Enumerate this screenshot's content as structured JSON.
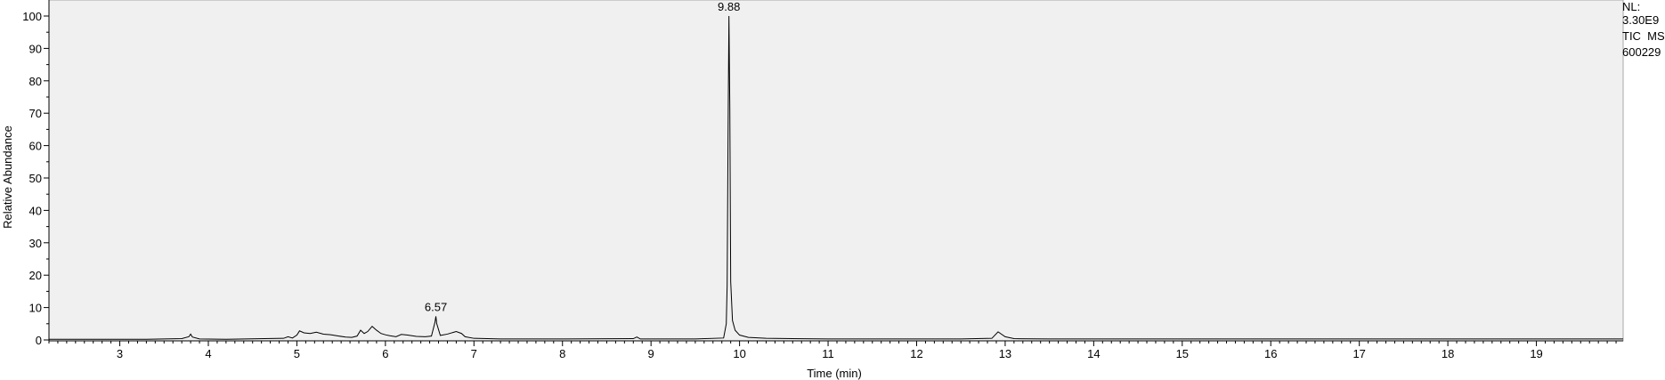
{
  "chart_data": {
    "type": "line",
    "title": "",
    "xlabel": "Time (min)",
    "ylabel": "Relative Abundance",
    "xlim": [
      2.2,
      19.98
    ],
    "ylim": [
      0,
      100
    ],
    "x_ticks": [
      3,
      4,
      5,
      6,
      7,
      8,
      9,
      10,
      11,
      12,
      13,
      14,
      15,
      16,
      17,
      18,
      19
    ],
    "y_ticks": [
      0,
      10,
      20,
      30,
      40,
      50,
      60,
      70,
      80,
      90,
      100
    ],
    "grid": false,
    "background": "#f0f0f0",
    "line_color": "#000000",
    "series": [
      {
        "x": [
          2.2,
          3.3,
          3.5,
          3.7,
          3.78,
          3.8,
          3.82,
          3.9,
          4.2,
          4.85,
          4.9,
          4.95,
          5.0,
          5.03,
          5.08,
          5.15,
          5.22,
          5.3,
          5.38,
          5.45,
          5.55,
          5.62,
          5.68,
          5.72,
          5.76,
          5.8,
          5.85,
          5.9,
          5.95,
          6.0,
          6.05,
          6.12,
          6.18,
          6.25,
          6.35,
          6.45,
          6.52,
          6.56,
          6.57,
          6.58,
          6.62,
          6.7,
          6.8,
          6.86,
          6.9,
          7.0,
          7.3,
          8.0,
          8.8,
          8.84,
          8.88,
          9.5,
          9.82,
          9.85,
          9.86,
          9.87,
          9.88,
          9.89,
          9.9,
          9.92,
          9.95,
          10.0,
          10.1,
          10.3,
          11.0,
          12.5,
          12.85,
          12.92,
          13.0,
          13.1,
          13.5,
          16.0,
          19.98
        ],
        "y": [
          0.2,
          0.2,
          0.3,
          0.4,
          1.0,
          1.8,
          0.9,
          0.3,
          0.2,
          0.5,
          1.0,
          0.6,
          1.5,
          2.8,
          2.2,
          2.0,
          2.4,
          1.8,
          1.6,
          1.3,
          0.9,
          0.8,
          1.2,
          3.0,
          2.0,
          2.6,
          4.2,
          3.0,
          2.0,
          1.6,
          1.3,
          1.0,
          1.7,
          1.5,
          1.1,
          1.0,
          1.2,
          5.5,
          7.3,
          5.0,
          1.4,
          1.8,
          2.6,
          2.0,
          1.0,
          0.5,
          0.3,
          0.3,
          0.4,
          0.9,
          0.3,
          0.3,
          0.6,
          5.0,
          17.0,
          63.0,
          100.0,
          72.0,
          18.0,
          6.0,
          3.0,
          1.5,
          0.8,
          0.5,
          0.3,
          0.3,
          0.5,
          2.5,
          1.0,
          0.4,
          0.3,
          0.3,
          0.3
        ]
      }
    ],
    "peak_labels": [
      {
        "text": "9.88",
        "x": 9.88,
        "y": 100
      },
      {
        "text": "6.57",
        "x": 6.57,
        "y": 7.3
      }
    ]
  },
  "info": {
    "nl_label": "NL:",
    "nl_value": "3.30E9",
    "trace": "TIC  MS",
    "file": "600229"
  }
}
